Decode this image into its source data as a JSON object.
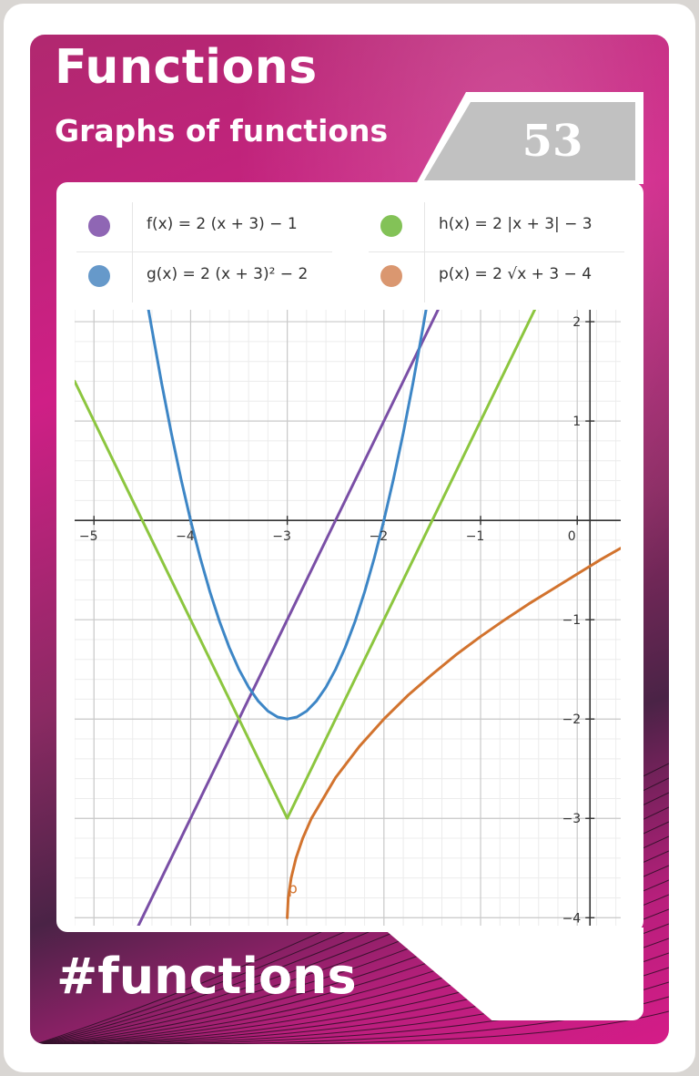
{
  "card": {
    "title": "Functions",
    "subtitle": "Graphs of functions",
    "number": "53",
    "hashtag": "#functions"
  },
  "legend": [
    {
      "label": "f(x) = 2 (x + 3) − 1",
      "color": "#9b6fc4"
    },
    {
      "label": "h(x) = 2 |x + 3| − 3",
      "color": "#8ed35f"
    },
    {
      "label": "g(x) = 2 (x + 3)² − 2",
      "color": "#6fa6dc"
    },
    {
      "label": "p(x) = 2 √x + 3 − 4",
      "color": "#eda47a"
    }
  ],
  "chart_data": {
    "type": "line",
    "xlim": [
      -5.2,
      0.45
    ],
    "ylim": [
      -4.08,
      2.12
    ],
    "grid": true,
    "x_ticks": [
      {
        "v": -5,
        "label": "−5"
      },
      {
        "v": -4,
        "label": "−4"
      },
      {
        "v": -3,
        "label": "−3"
      },
      {
        "v": -2,
        "label": "−2"
      },
      {
        "v": -1,
        "label": "−1"
      },
      {
        "v": 0,
        "label": "0"
      }
    ],
    "y_ticks": [
      {
        "v": 2,
        "label": "2"
      },
      {
        "v": 1,
        "label": "1"
      },
      {
        "v": -1,
        "label": "−1"
      },
      {
        "v": -2,
        "label": "−2"
      },
      {
        "v": -3,
        "label": "−3"
      },
      {
        "v": -4,
        "label": "−4"
      }
    ],
    "series": [
      {
        "key": "f",
        "color": "#7a4fa6",
        "points": [
          [
            -5.2,
            -5.4
          ],
          [
            -4.5,
            -4
          ],
          [
            -4,
            -3
          ],
          [
            -3.5,
            -2
          ],
          [
            -3,
            -1
          ],
          [
            -2.5,
            0
          ],
          [
            -2,
            1
          ],
          [
            -1.5,
            2
          ],
          [
            -1.44,
            2.12
          ]
        ]
      },
      {
        "key": "g",
        "color": "#3d86c6",
        "points": [
          [
            -4.45,
            2.2
          ],
          [
            -4.4,
            1.92
          ],
          [
            -4.3,
            1.38
          ],
          [
            -4.2,
            0.88
          ],
          [
            -4.1,
            0.42
          ],
          [
            -4,
            0
          ],
          [
            -3.9,
            -0.38
          ],
          [
            -3.8,
            -0.72
          ],
          [
            -3.7,
            -1.02
          ],
          [
            -3.6,
            -1.28
          ],
          [
            -3.5,
            -1.5
          ],
          [
            -3.4,
            -1.68
          ],
          [
            -3.3,
            -1.82
          ],
          [
            -3.2,
            -1.92
          ],
          [
            -3.1,
            -1.98
          ],
          [
            -3,
            -2
          ],
          [
            -2.9,
            -1.98
          ],
          [
            -2.8,
            -1.92
          ],
          [
            -2.7,
            -1.82
          ],
          [
            -2.6,
            -1.68
          ],
          [
            -2.5,
            -1.5
          ],
          [
            -2.4,
            -1.28
          ],
          [
            -2.3,
            -1.02
          ],
          [
            -2.2,
            -0.72
          ],
          [
            -2.1,
            -0.38
          ],
          [
            -2,
            0
          ],
          [
            -1.9,
            0.42
          ],
          [
            -1.8,
            0.88
          ],
          [
            -1.7,
            1.38
          ],
          [
            -1.6,
            1.92
          ],
          [
            -1.55,
            2.2
          ]
        ]
      },
      {
        "key": "h",
        "color": "#8cc63f",
        "points": [
          [
            -5.2,
            1.4
          ],
          [
            -3,
            -3
          ],
          [
            -0.44,
            2.12
          ]
        ]
      },
      {
        "key": "p",
        "color": "#d2732e",
        "points": [
          [
            -3,
            -4
          ],
          [
            -2.99,
            -3.8
          ],
          [
            -2.96,
            -3.6
          ],
          [
            -2.91,
            -3.4
          ],
          [
            -2.84,
            -3.2
          ],
          [
            -2.75,
            -3
          ],
          [
            -2.5,
            -2.59
          ],
          [
            -2.25,
            -2.27
          ],
          [
            -2,
            -2
          ],
          [
            -1.75,
            -1.76
          ],
          [
            -1.5,
            -1.55
          ],
          [
            -1.25,
            -1.35
          ],
          [
            -1,
            -1.17
          ],
          [
            -0.75,
            -1
          ],
          [
            -0.5,
            -0.84
          ],
          [
            -0.25,
            -0.69
          ],
          [
            0,
            -0.54
          ],
          [
            0.25,
            -0.39
          ],
          [
            0.45,
            -0.28
          ]
        ]
      }
    ],
    "point_labels": [
      {
        "text": "p",
        "x": -3,
        "y": -3.7,
        "color": "#d2732e"
      }
    ]
  }
}
